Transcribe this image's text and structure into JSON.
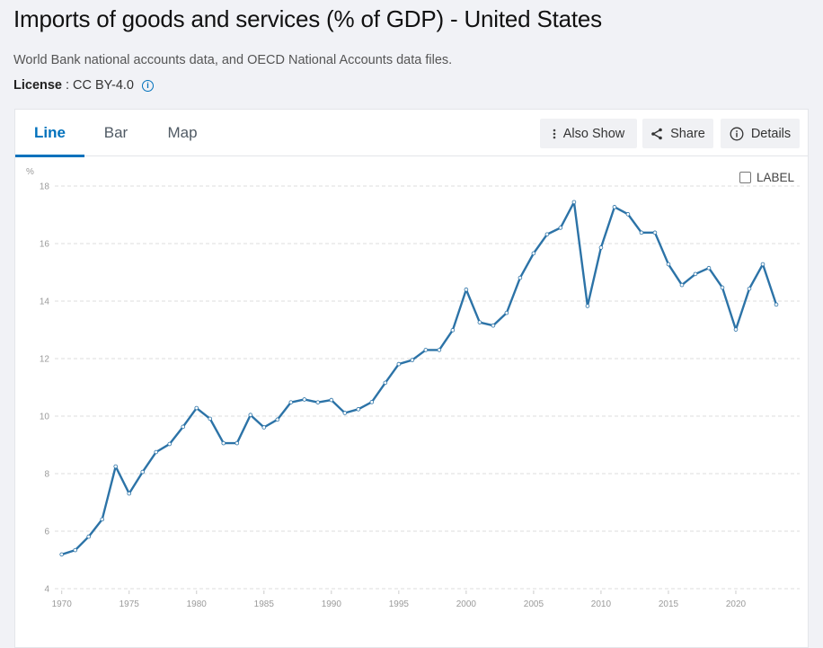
{
  "page": {
    "title": "Imports of goods and services (% of GDP) - United States",
    "source": "World Bank national accounts data, and OECD National Accounts data files.",
    "license_label": "License",
    "license_sep": ":",
    "license_value": "CC BY-4.0",
    "license_info_icon": "info-icon"
  },
  "tabs": [
    {
      "label": "Line",
      "active": true
    },
    {
      "label": "Bar",
      "active": false
    },
    {
      "label": "Map",
      "active": false
    }
  ],
  "toolbar": {
    "also_show": {
      "label": "Also Show",
      "icon": "vertical-dots-icon"
    },
    "share": {
      "label": "Share",
      "icon": "share-icon"
    },
    "details": {
      "label": "Details",
      "icon": "info-icon"
    }
  },
  "label_toggle": {
    "label": "LABEL",
    "checked": false
  },
  "colors": {
    "accent": "#0071bc",
    "series": "#2c73a7",
    "grid": "#dddddd",
    "tick_text": "#9a9a9a"
  },
  "chart_data": {
    "type": "line",
    "title": "Imports of goods and services (% of GDP) - United States",
    "xlabel": "",
    "ylabel": "%",
    "xlim": [
      1970,
      2023
    ],
    "ylim": [
      4,
      18
    ],
    "grid": true,
    "x_ticks": [
      1970,
      1975,
      1980,
      1985,
      1990,
      1995,
      2000,
      2005,
      2010,
      2015,
      2020
    ],
    "y_ticks": [
      4,
      6,
      8,
      10,
      12,
      14,
      16,
      18
    ],
    "legend": "none",
    "x": [
      1970,
      1971,
      1972,
      1973,
      1974,
      1975,
      1976,
      1977,
      1978,
      1979,
      1980,
      1981,
      1982,
      1983,
      1984,
      1985,
      1986,
      1987,
      1988,
      1989,
      1990,
      1991,
      1992,
      1993,
      1994,
      1995,
      1996,
      1997,
      1998,
      1999,
      2000,
      2001,
      2002,
      2003,
      2004,
      2005,
      2006,
      2007,
      2008,
      2009,
      2010,
      2011,
      2012,
      2013,
      2014,
      2015,
      2016,
      2017,
      2018,
      2019,
      2020,
      2021,
      2022,
      2023
    ],
    "series": [
      {
        "name": "United States",
        "values": [
          5.19,
          5.34,
          5.81,
          6.41,
          8.25,
          7.31,
          8.06,
          8.75,
          9.03,
          9.63,
          10.28,
          9.91,
          9.06,
          9.06,
          10.04,
          9.61,
          9.88,
          10.48,
          10.58,
          10.48,
          10.56,
          10.11,
          10.24,
          10.49,
          11.16,
          11.81,
          11.95,
          12.3,
          12.3,
          12.99,
          14.4,
          13.26,
          13.15,
          13.59,
          14.81,
          15.66,
          16.32,
          16.55,
          17.44,
          13.83,
          15.86,
          17.27,
          17.02,
          16.38,
          16.38,
          15.28,
          14.56,
          14.94,
          15.15,
          14.47,
          13.01,
          14.43,
          15.28,
          13.88
        ]
      }
    ]
  }
}
